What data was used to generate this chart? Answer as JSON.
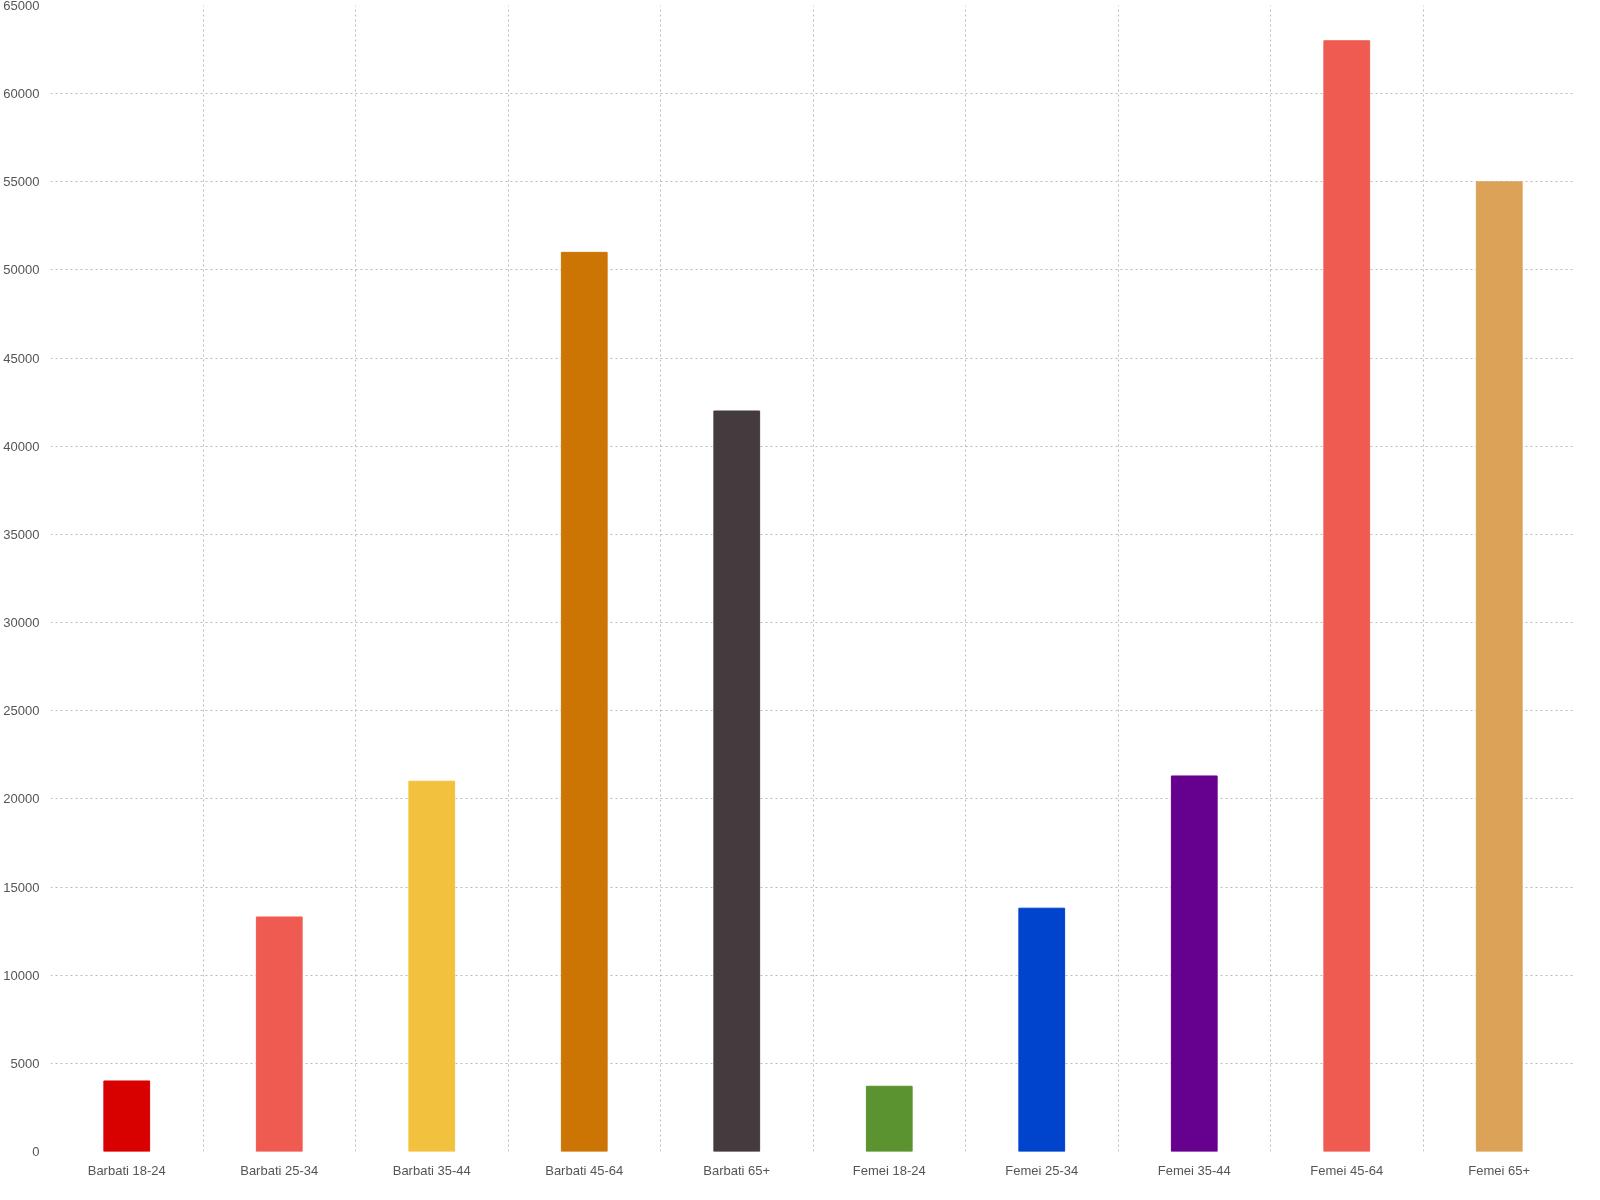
{
  "chart_data": {
    "type": "bar",
    "categories": [
      "Barbati 18-24",
      "Barbati 25-34",
      "Barbati 35-44",
      "Barbati 45-64",
      "Barbati 65+",
      "Femei 18-24",
      "Femei 25-34",
      "Femei 35-44",
      "Femei 45-64",
      "Femei 65+"
    ],
    "values": [
      4000,
      13300,
      21000,
      51000,
      42000,
      3700,
      13800,
      21300,
      63000,
      55000
    ],
    "colors": [
      "#d90000",
      "#ef5b50",
      "#f2c23e",
      "#cc7505",
      "#433b3d",
      "#5a9330",
      "#0043cc",
      "#66008f",
      "#ef5b50",
      "#dca257"
    ],
    "ylim": [
      0,
      65000
    ],
    "yticks": [
      0,
      5000,
      10000,
      15000,
      20000,
      25000,
      30000,
      35000,
      40000,
      45000,
      50000,
      55000,
      60000,
      65000
    ],
    "grid": true
  }
}
